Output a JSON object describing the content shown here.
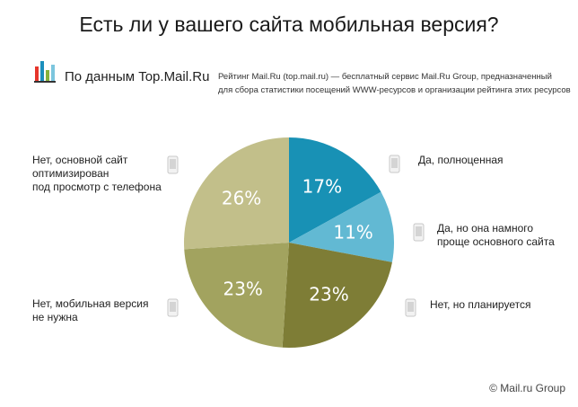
{
  "title": "Есть ли у вашего сайта мобильная версия?",
  "source_label": "По данным Top.Mail.Ru",
  "note_lines": [
    "Рейтинг Mail.Ru (top.mail.ru) — бесплатный сервис Mail.Ru Group, предназначенный",
    "для сбора статистики посещений WWW-ресурсов и организации рейтинга этих ресурсов"
  ],
  "copyright": "© Mail.ru Group",
  "icons": {
    "logo": "bar-chart-logo-icon",
    "phone": "mobile-phone-icon"
  },
  "colors": {
    "yes_full": "#1891b5",
    "yes_simple": "#62b9d3",
    "planned": "#7e7d36",
    "not_needed": "#a2a35f",
    "optimized": "#c2bf8a",
    "logo_bars": [
      "#e6352b",
      "#1c8fbd",
      "#86b23c"
    ]
  },
  "chart_data": {
    "type": "pie",
    "title": "Есть ли у вашего сайта мобильная версия?",
    "start_angle_deg": 0,
    "direction": "clockwise",
    "slices": [
      {
        "label_lines": [
          "Да, полноценная"
        ],
        "value": 17,
        "display": "17%",
        "color": "#1891b5"
      },
      {
        "label_lines": [
          "Да, но она намного",
          "проще основного сайта"
        ],
        "value": 11,
        "display": "11%",
        "color": "#62b9d3"
      },
      {
        "label_lines": [
          "Нет, но планируется"
        ],
        "value": 23,
        "display": "23%",
        "color": "#7e7d36"
      },
      {
        "label_lines": [
          "Нет, мобильная версия",
          "не нужна"
        ],
        "value": 23,
        "display": "23%",
        "color": "#a2a35f"
      },
      {
        "label_lines": [
          "Нет, основной сайт",
          "оптимизирован",
          "под просмотр с телефона"
        ],
        "value": 26,
        "display": "26%",
        "color": "#c2bf8a"
      }
    ]
  }
}
